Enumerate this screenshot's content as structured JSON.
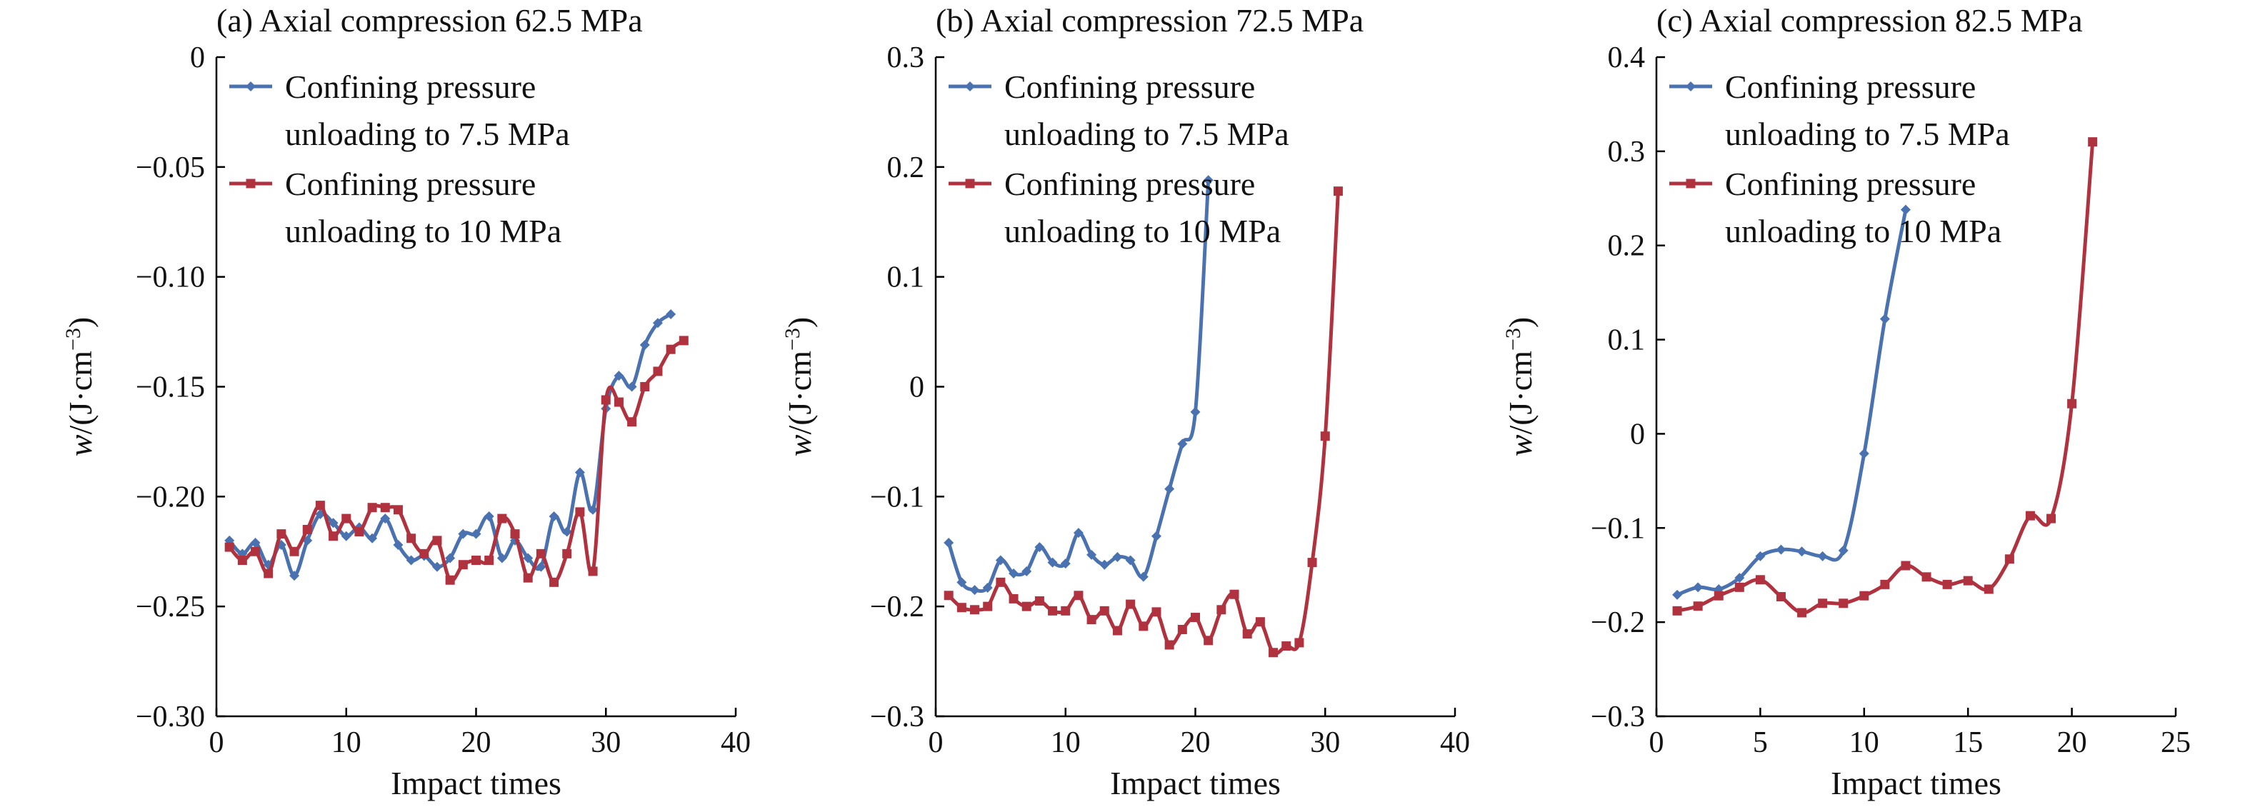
{
  "figure": {
    "colors": {
      "series_1": "#4a72b0",
      "series_2": "#b0323f",
      "axis": "#000000"
    }
  },
  "chart_data": [
    {
      "type": "line",
      "title": "(a) Axial compression 62.5 MPa",
      "xlabel": "Impact times",
      "ylabel_main": "w",
      "ylabel_unit": "/(J·cm",
      "ylabel_exp": "−3",
      "ylabel_close": ")",
      "xlim": [
        0,
        40
      ],
      "ylim": [
        -0.3,
        0
      ],
      "xticks": [
        0,
        10,
        20,
        30,
        40
      ],
      "xtick_labels": [
        "0",
        "10",
        "20",
        "30",
        "40"
      ],
      "yticks": [
        0,
        -0.05,
        -0.1,
        -0.15,
        -0.2,
        -0.25,
        -0.3
      ],
      "ytick_labels": [
        "0",
        "−0.05",
        "−0.10",
        "−0.15",
        "−0.20",
        "−0.25",
        "−0.30"
      ],
      "grid": false,
      "legend_position": "top-left",
      "series": [
        {
          "name": "Confining pressure unloading to 7.5 MPa",
          "legend_lines": [
            "Confining pressure",
            "unloading to 7.5 MPa"
          ],
          "color": "#4a72b0",
          "marker": "diamond",
          "x": [
            1,
            2,
            3,
            4,
            5,
            6,
            7,
            8,
            9,
            10,
            11,
            12,
            13,
            14,
            15,
            16,
            17,
            18,
            19,
            20,
            21,
            22,
            23,
            24,
            25,
            26,
            27,
            28,
            29,
            30,
            31,
            32,
            33,
            34,
            35
          ],
          "y": [
            -0.22,
            -0.226,
            -0.221,
            -0.231,
            -0.222,
            -0.236,
            -0.22,
            -0.208,
            -0.212,
            -0.218,
            -0.214,
            -0.219,
            -0.21,
            -0.222,
            -0.229,
            -0.227,
            -0.232,
            -0.228,
            -0.217,
            -0.217,
            -0.209,
            -0.228,
            -0.22,
            -0.228,
            -0.232,
            -0.209,
            -0.216,
            -0.189,
            -0.206,
            -0.16,
            -0.145,
            -0.15,
            -0.131,
            -0.121,
            -0.117
          ]
        },
        {
          "name": "Confining pressure unloading to 10 MPa",
          "legend_lines": [
            "Confining pressure",
            "unloading to 10 MPa"
          ],
          "color": "#b0323f",
          "marker": "square",
          "x": [
            1,
            2,
            3,
            4,
            5,
            6,
            7,
            8,
            9,
            10,
            11,
            12,
            13,
            14,
            15,
            16,
            17,
            18,
            19,
            20,
            21,
            22,
            23,
            24,
            25,
            26,
            27,
            28,
            29,
            30,
            31,
            32,
            33,
            34,
            35,
            36
          ],
          "y": [
            -0.223,
            -0.229,
            -0.225,
            -0.235,
            -0.217,
            -0.225,
            -0.215,
            -0.204,
            -0.218,
            -0.21,
            -0.216,
            -0.205,
            -0.205,
            -0.206,
            -0.219,
            -0.226,
            -0.22,
            -0.238,
            -0.231,
            -0.229,
            -0.229,
            -0.21,
            -0.217,
            -0.237,
            -0.226,
            -0.239,
            -0.226,
            -0.207,
            -0.234,
            -0.156,
            -0.157,
            -0.166,
            -0.15,
            -0.143,
            -0.133,
            -0.129
          ]
        }
      ]
    },
    {
      "type": "line",
      "title": "(b) Axial compression 72.5 MPa",
      "xlabel": "Impact times",
      "ylabel_main": "w",
      "ylabel_unit": "/(J·cm",
      "ylabel_exp": "−3",
      "ylabel_close": ")",
      "xlim": [
        0,
        40
      ],
      "ylim": [
        -0.3,
        0.3
      ],
      "xticks": [
        0,
        10,
        20,
        30,
        40
      ],
      "xtick_labels": [
        "0",
        "10",
        "20",
        "30",
        "40"
      ],
      "yticks": [
        0.3,
        0.2,
        0.1,
        0,
        -0.1,
        -0.2,
        -0.3
      ],
      "ytick_labels": [
        "0.3",
        "0.2",
        "0.1",
        "0",
        "−0.1",
        "−0.2",
        "−0.3"
      ],
      "grid": false,
      "legend_position": "top-left",
      "series": [
        {
          "name": "Confining pressure unloading to 7.5 MPa",
          "legend_lines": [
            "Confining pressure",
            "unloading to 7.5 MPa"
          ],
          "color": "#4a72b0",
          "marker": "diamond",
          "x": [
            1,
            2,
            3,
            4,
            5,
            6,
            7,
            8,
            9,
            10,
            11,
            12,
            13,
            14,
            15,
            16,
            17,
            18,
            19,
            20,
            21
          ],
          "y": [
            -0.142,
            -0.178,
            -0.185,
            -0.183,
            -0.158,
            -0.17,
            -0.168,
            -0.146,
            -0.16,
            -0.161,
            -0.133,
            -0.153,
            -0.162,
            -0.155,
            -0.158,
            -0.173,
            -0.136,
            -0.093,
            -0.052,
            -0.023,
            0.188
          ]
        },
        {
          "name": "Confining pressure unloading to 10 MPa",
          "legend_lines": [
            "Confining pressure",
            "unloading to 10 MPa"
          ],
          "color": "#b0323f",
          "marker": "square",
          "x": [
            1,
            2,
            3,
            4,
            5,
            6,
            7,
            8,
            9,
            10,
            11,
            12,
            13,
            14,
            15,
            16,
            17,
            18,
            19,
            20,
            21,
            22,
            23,
            24,
            25,
            26,
            27,
            28,
            29,
            30,
            31
          ],
          "y": [
            -0.19,
            -0.201,
            -0.203,
            -0.2,
            -0.178,
            -0.193,
            -0.2,
            -0.195,
            -0.204,
            -0.204,
            -0.19,
            -0.212,
            -0.204,
            -0.222,
            -0.198,
            -0.218,
            -0.205,
            -0.235,
            -0.221,
            -0.21,
            -0.231,
            -0.203,
            -0.189,
            -0.225,
            -0.214,
            -0.242,
            -0.236,
            -0.233,
            -0.16,
            -0.045,
            0.178
          ]
        }
      ]
    },
    {
      "type": "line",
      "title": "(c) Axial compression 82.5 MPa",
      "xlabel": "Impact times",
      "ylabel_main": "w",
      "ylabel_unit": "/(J·cm",
      "ylabel_exp": "−3",
      "ylabel_close": ")",
      "xlim": [
        0,
        25
      ],
      "ylim": [
        -0.3,
        0.4
      ],
      "xticks": [
        0,
        5,
        10,
        15,
        20,
        25
      ],
      "xtick_labels": [
        "0",
        "5",
        "10",
        "15",
        "20",
        "25"
      ],
      "yticks": [
        0.4,
        0.3,
        0.2,
        0.1,
        0,
        -0.1,
        -0.2,
        -0.3
      ],
      "ytick_labels": [
        "0.4",
        "0.3",
        "0.2",
        "0.1",
        "0",
        "−0.1",
        "−0.2",
        "−0.3"
      ],
      "grid": false,
      "legend_position": "top-left",
      "series": [
        {
          "name": "Confining pressure unloading to 7.5 MPa",
          "legend_lines": [
            "Confining pressure",
            "unloading to 7.5 MPa"
          ],
          "color": "#4a72b0",
          "marker": "diamond",
          "x": [
            1,
            2,
            3,
            4,
            5,
            6,
            7,
            8,
            9,
            10,
            11,
            12
          ],
          "y": [
            -0.171,
            -0.163,
            -0.165,
            -0.153,
            -0.13,
            -0.123,
            -0.125,
            -0.13,
            -0.124,
            -0.021,
            0.122,
            0.238
          ]
        },
        {
          "name": "Confining pressure unloading to 10 MPa",
          "legend_lines": [
            "Confining pressure",
            "unloading to 10 MPa"
          ],
          "color": "#b0323f",
          "marker": "square",
          "x": [
            1,
            2,
            3,
            4,
            5,
            6,
            7,
            8,
            9,
            10,
            11,
            12,
            13,
            14,
            15,
            16,
            17,
            18,
            19,
            20,
            21
          ],
          "y": [
            -0.188,
            -0.183,
            -0.172,
            -0.163,
            -0.155,
            -0.173,
            -0.19,
            -0.18,
            -0.18,
            -0.172,
            -0.16,
            -0.14,
            -0.152,
            -0.16,
            -0.156,
            -0.165,
            -0.133,
            -0.087,
            -0.09,
            0.032,
            0.31
          ]
        }
      ]
    }
  ]
}
